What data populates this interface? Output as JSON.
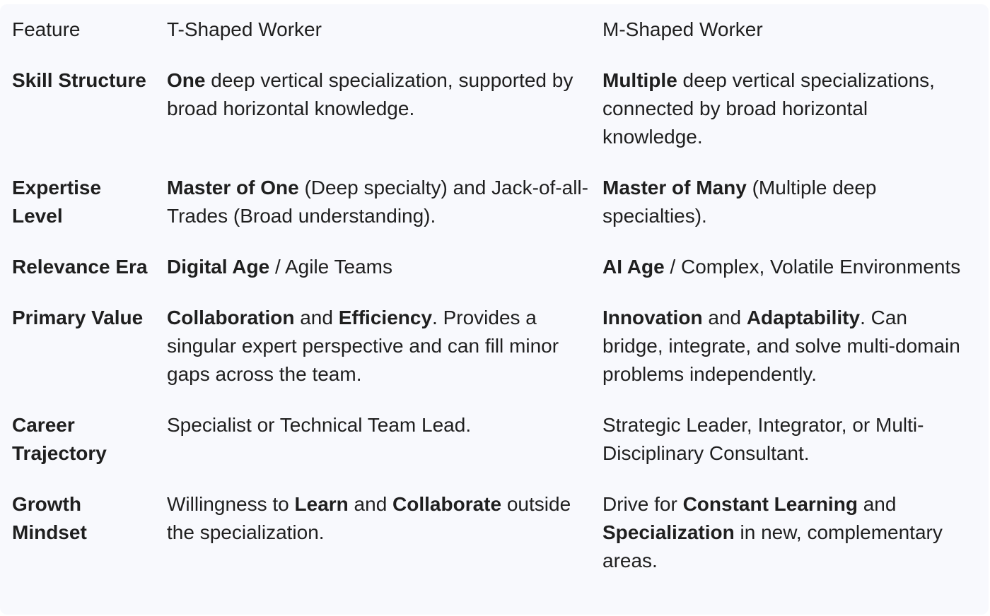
{
  "header": {
    "col_feature": "Feature",
    "col_t": "T-Shaped Worker",
    "col_m": "M-Shaped Worker"
  },
  "rows": [
    {
      "feature": "Skill Structure",
      "t": [
        {
          "text": "One",
          "bold": true
        },
        {
          "text": " deep vertical specialization, supported by broad horizontal knowledge.",
          "bold": false
        }
      ],
      "m": [
        {
          "text": "Multiple",
          "bold": true
        },
        {
          "text": " deep vertical specializations, connected by broad horizontal knowledge.",
          "bold": false
        }
      ]
    },
    {
      "feature": "Expertise Level",
      "t": [
        {
          "text": "Master of One",
          "bold": true
        },
        {
          "text": " (Deep specialty) and Jack-of-all-Trades (Broad understanding).",
          "bold": false
        }
      ],
      "m": [
        {
          "text": "Master of Many",
          "bold": true
        },
        {
          "text": " (Multiple deep specialties).",
          "bold": false
        }
      ]
    },
    {
      "feature": "Relevance Era",
      "t": [
        {
          "text": "Digital Age",
          "bold": true
        },
        {
          "text": " / Agile Teams",
          "bold": false
        }
      ],
      "m": [
        {
          "text": "AI Age",
          "bold": true
        },
        {
          "text": " / Complex, Volatile Environments",
          "bold": false
        }
      ]
    },
    {
      "feature": "Primary Value",
      "t": [
        {
          "text": "Collaboration",
          "bold": true
        },
        {
          "text": " and ",
          "bold": false
        },
        {
          "text": "Efficiency",
          "bold": true
        },
        {
          "text": ". Provides a singular expert perspective and can fill minor gaps across the team.",
          "bold": false
        }
      ],
      "m": [
        {
          "text": "Innovation",
          "bold": true
        },
        {
          "text": " and ",
          "bold": false
        },
        {
          "text": "Adaptability",
          "bold": true
        },
        {
          "text": ". Can bridge, integrate, and solve multi-domain problems independently.",
          "bold": false
        }
      ]
    },
    {
      "feature": "Career Trajectory",
      "t": [
        {
          "text": "Specialist or Technical Team Lead.",
          "bold": false
        }
      ],
      "m": [
        {
          "text": "Strategic Leader, Integrator, or Multi-Disciplinary Consultant.",
          "bold": false
        }
      ]
    },
    {
      "feature": "Growth Mindset",
      "t": [
        {
          "text": "Willingness to ",
          "bold": false
        },
        {
          "text": "Learn",
          "bold": true
        },
        {
          "text": " and ",
          "bold": false
        },
        {
          "text": "Collaborate",
          "bold": true
        },
        {
          "text": " outside the specialization.",
          "bold": false
        }
      ],
      "m": [
        {
          "text": "Drive for ",
          "bold": false
        },
        {
          "text": "Constant Learning",
          "bold": true
        },
        {
          "text": " and ",
          "bold": false
        },
        {
          "text": "Specialization",
          "bold": true
        },
        {
          "text": " in new, complementary areas.",
          "bold": false
        }
      ]
    }
  ]
}
